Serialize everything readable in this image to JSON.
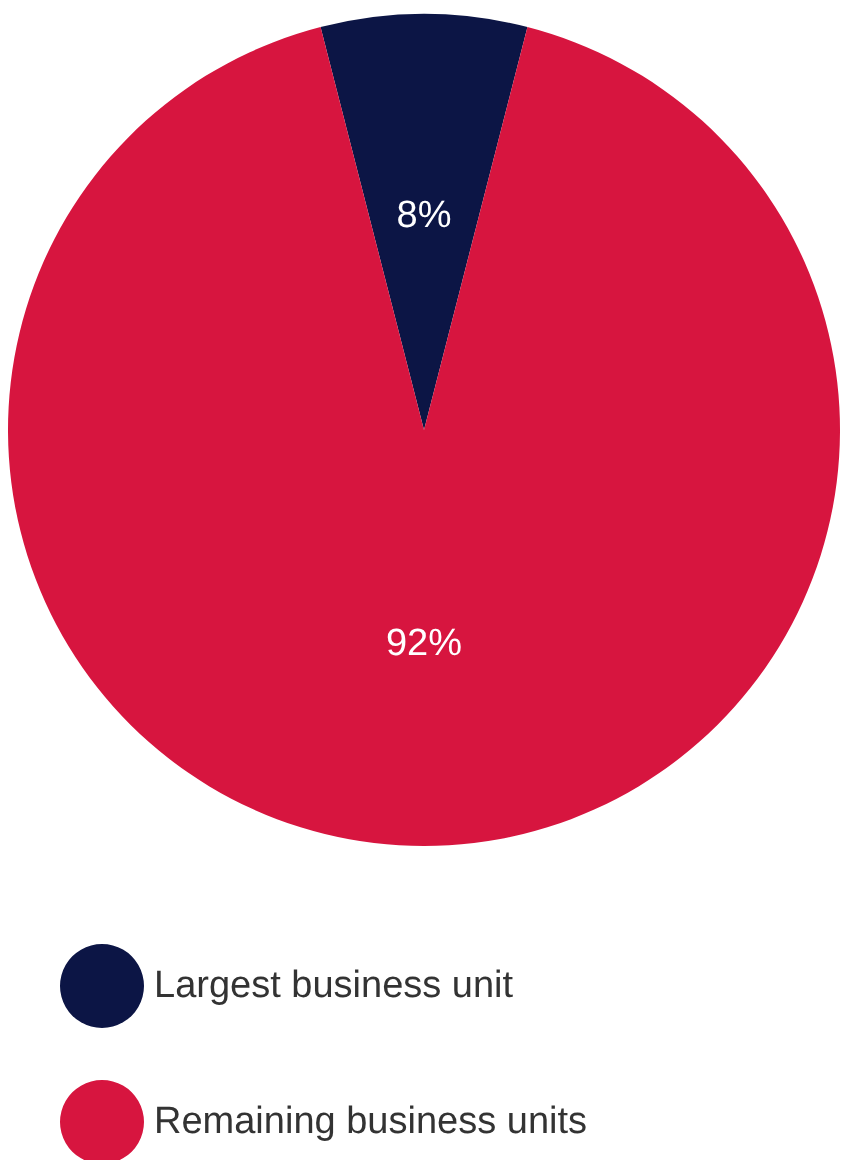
{
  "chart_data": {
    "type": "pie",
    "categories": [
      "Largest business unit",
      "Remaining business units"
    ],
    "values": [
      8,
      92
    ],
    "colors": [
      "#0c1545",
      "#d7153f"
    ],
    "value_labels": [
      "8%",
      "92%"
    ],
    "legend": "bottom left"
  }
}
